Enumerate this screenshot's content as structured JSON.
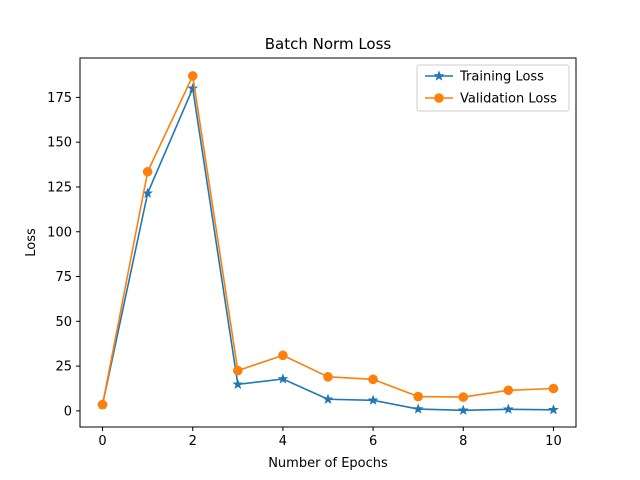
{
  "chart_data": {
    "type": "line",
    "title": "Batch Norm Loss",
    "xlabel": "Number of Epochs",
    "ylabel": "Loss",
    "x": [
      0,
      1,
      2,
      3,
      4,
      5,
      6,
      7,
      8,
      9,
      10
    ],
    "xlim": [
      -0.5,
      10.5
    ],
    "ylim": [
      -9,
      197
    ],
    "xticks": [
      0,
      2,
      4,
      6,
      8,
      10
    ],
    "yticks": [
      0,
      25,
      50,
      75,
      100,
      125,
      150,
      175
    ],
    "grid": false,
    "legend_position": "top-right",
    "series": [
      {
        "name": "Training Loss",
        "color": "#1f77b4",
        "marker": "star",
        "values": [
          3.5,
          121.5,
          180,
          14.8,
          17.8,
          6.5,
          5.9,
          1.0,
          0.3,
          0.9,
          0.6
        ]
      },
      {
        "name": "Validation Loss",
        "color": "#ff7f0e",
        "marker": "circle",
        "values": [
          3.5,
          133.5,
          187,
          22.5,
          31,
          19,
          17.6,
          8,
          7.7,
          11.5,
          12.5
        ]
      }
    ]
  }
}
